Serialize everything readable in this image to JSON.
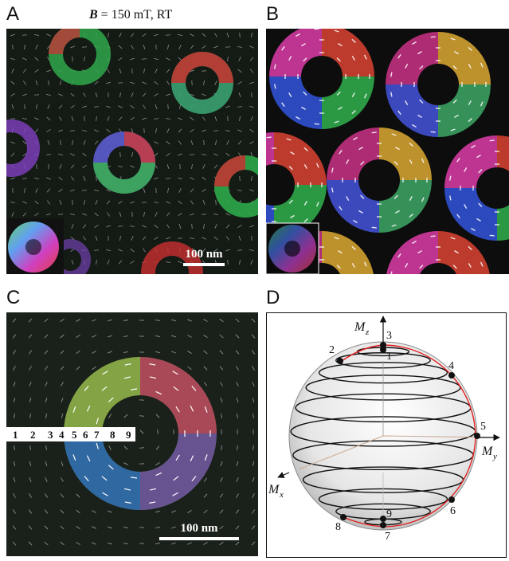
{
  "panels": {
    "a": {
      "letter": "A",
      "title_var": "B",
      "title_rest": " = 150 mT, RT",
      "scale_bar": "100 nm"
    },
    "b": {
      "letter": "B"
    },
    "c": {
      "letter": "C",
      "scale_bar": "100 nm",
      "point_labels": [
        "1",
        "2",
        "3",
        "4",
        "5",
        "6",
        "7",
        "8",
        "9"
      ]
    },
    "d": {
      "letter": "D",
      "axis_z": "M",
      "axis_z_sub": "z",
      "axis_y": "M",
      "axis_y_sub": "y",
      "axis_x": "M",
      "axis_x_sub": "x",
      "points": [
        "1",
        "2",
        "3",
        "4",
        "5",
        "6",
        "7",
        "8",
        "9"
      ]
    }
  }
}
